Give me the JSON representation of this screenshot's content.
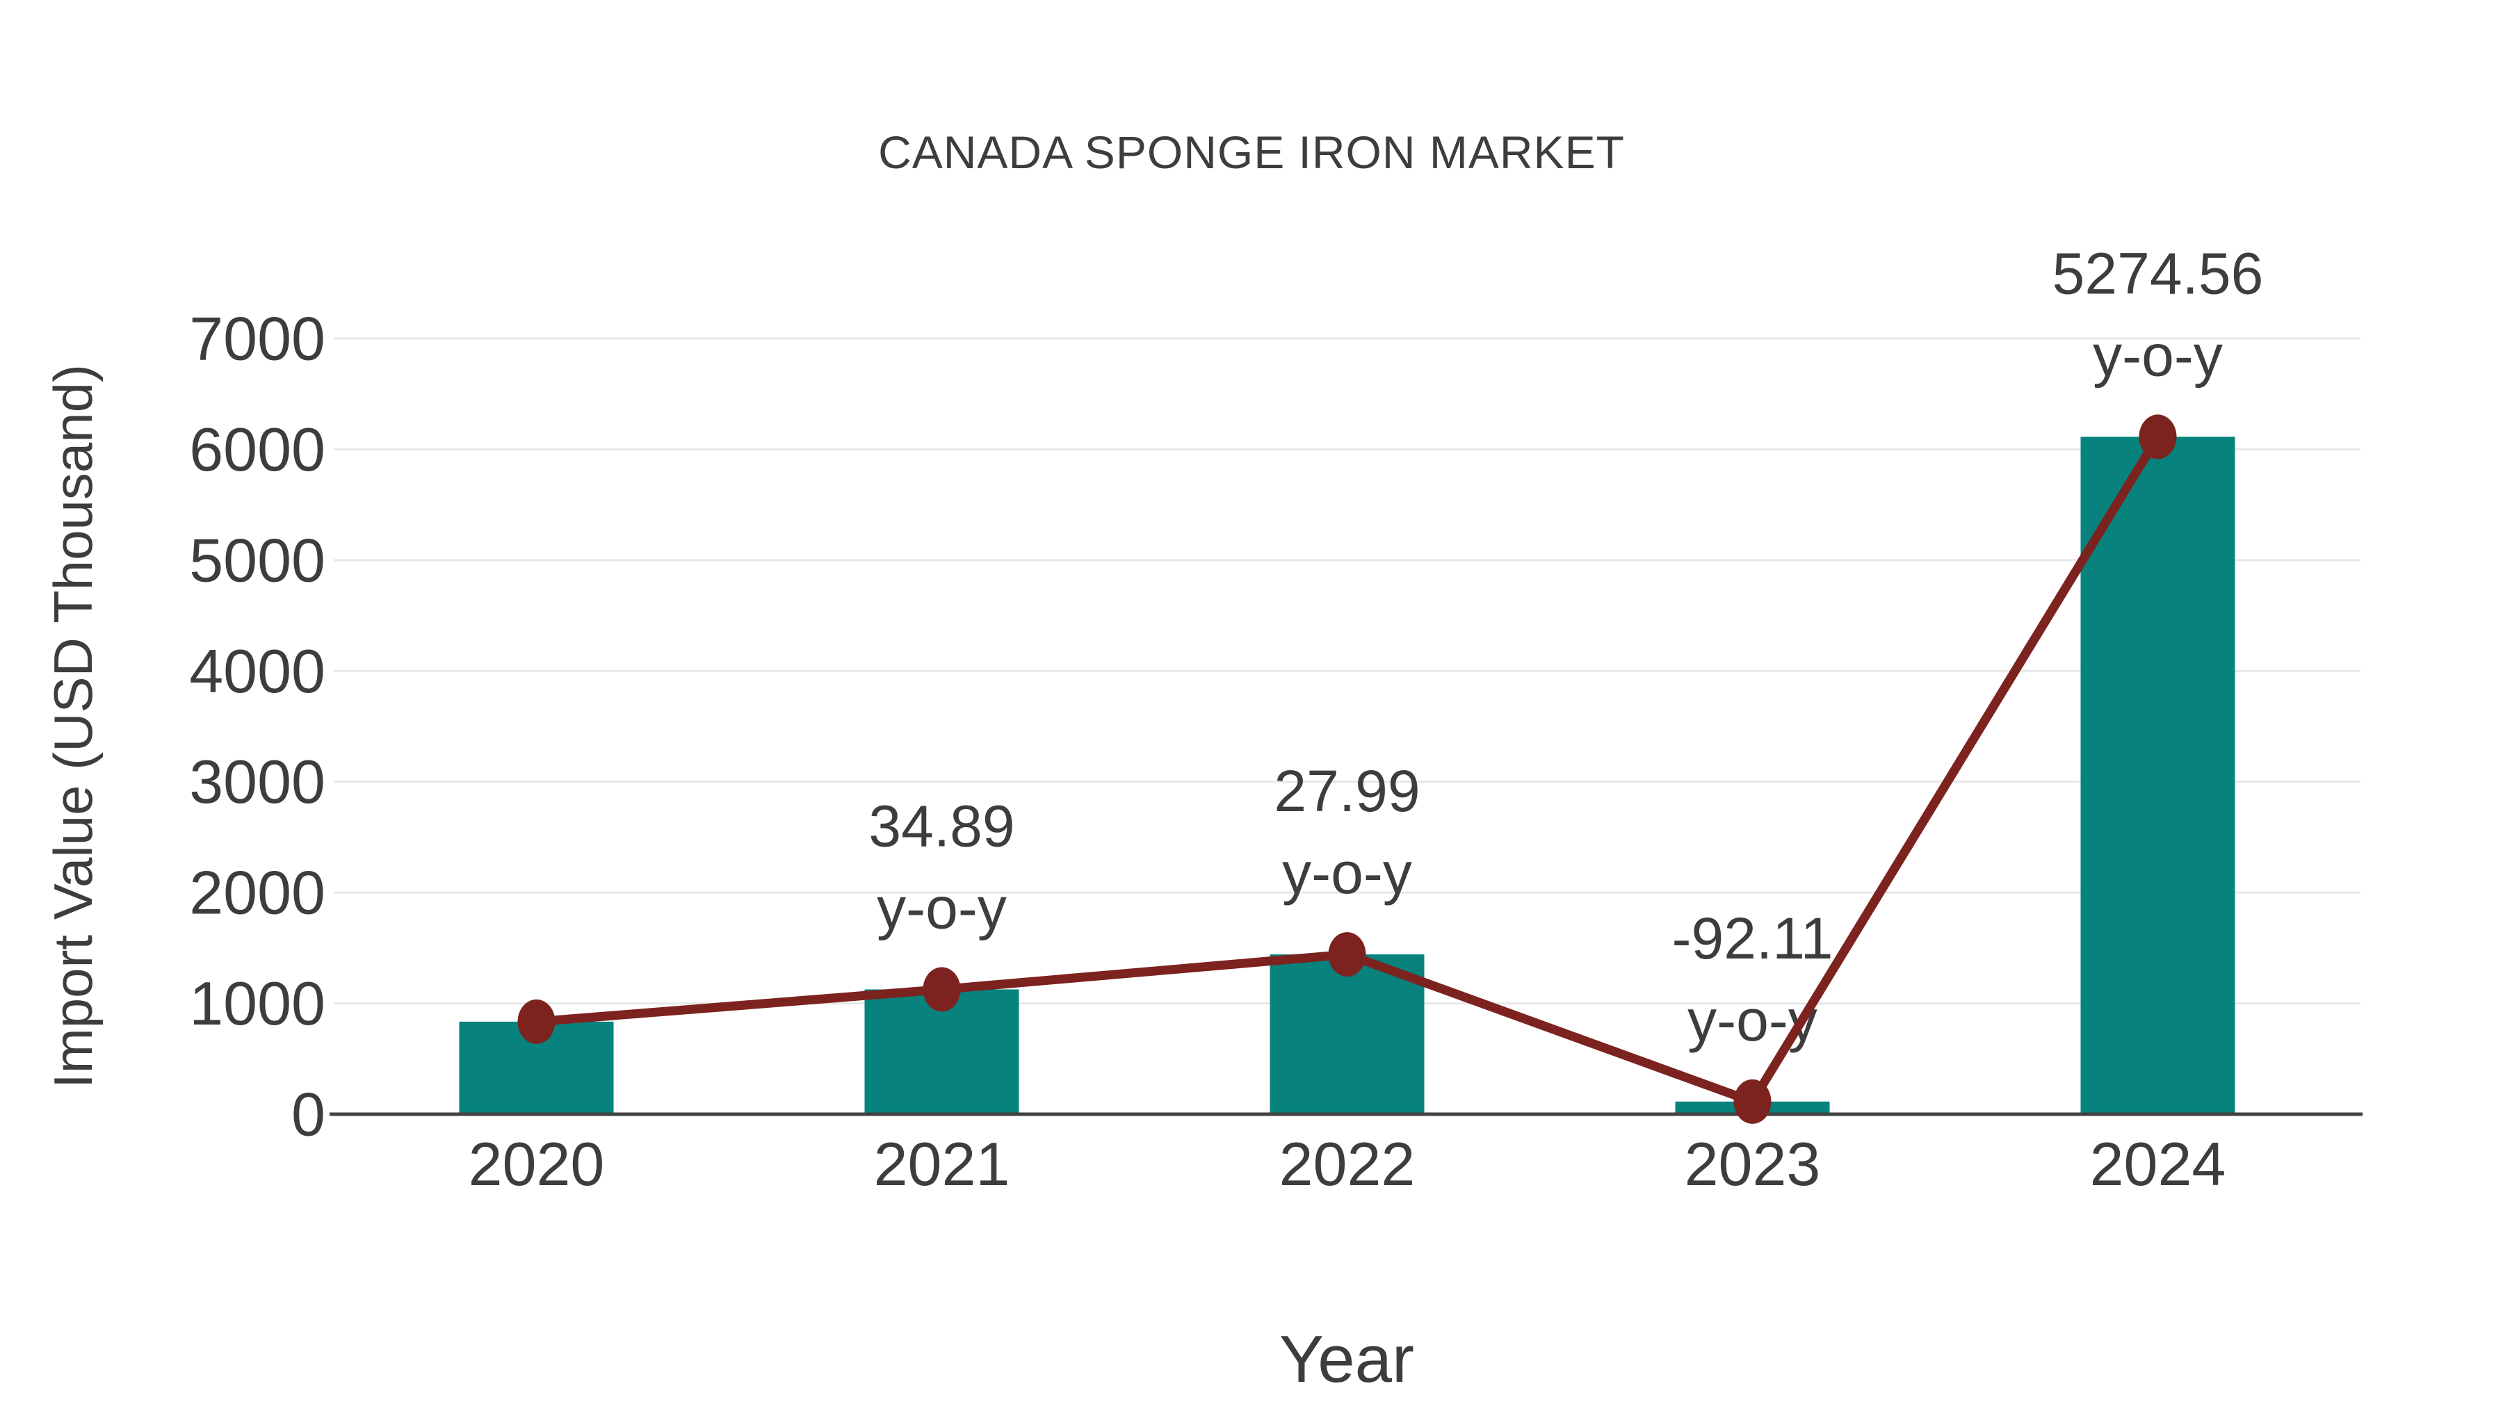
{
  "chart_data": {
    "type": "bar",
    "title": "CANADA SPONGE IRON MARKET",
    "xlabel": "Year",
    "ylabel": "Import Value (USD Thousand)",
    "categories": [
      "2020",
      "2021",
      "2022",
      "2023",
      "2024"
    ],
    "series": [
      {
        "name": "Import Value (USD Thousand)",
        "type": "bar",
        "color": "#07827D",
        "values": [
          835,
          1126,
          1442,
          114,
          6113
        ]
      },
      {
        "name": "y-o-y growth",
        "type": "line",
        "color": "#7C231F",
        "marker": "circle",
        "values": [
          835,
          1126,
          1442,
          114,
          6113
        ],
        "point_labels": [
          "",
          "34.89",
          "27.99",
          "-92.11",
          "5274.56"
        ],
        "point_label_suffix": "y-o-y"
      }
    ],
    "ylim": [
      0,
      7000
    ],
    "yticks": [
      "0",
      "1000",
      "2000",
      "3000",
      "4000",
      "5000",
      "6000",
      "7000"
    ],
    "grid": "horizontal",
    "legend_position": "none",
    "colors": {
      "text": "#3D3D3D",
      "grid": "#E7E7E7",
      "axis": "#424242",
      "background": "#FFFFFF"
    }
  }
}
